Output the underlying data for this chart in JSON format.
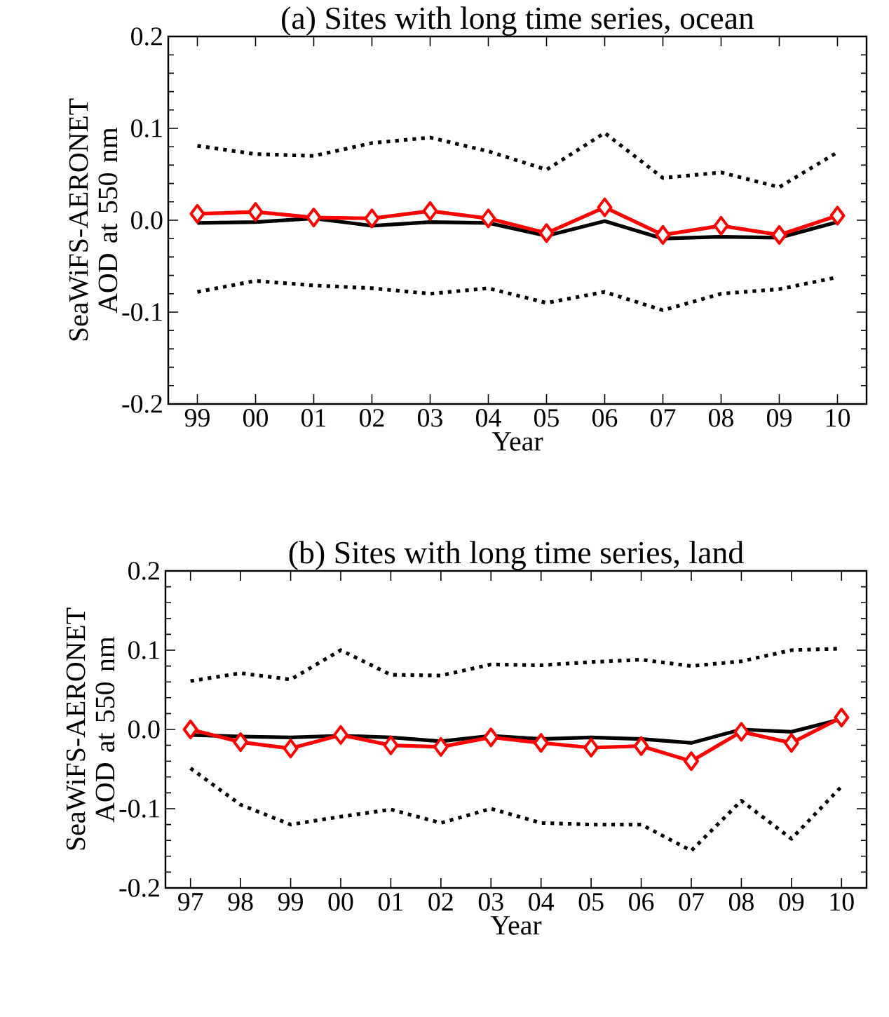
{
  "chart_data": [
    {
      "type": "line",
      "title": "(a) Sites with long time series, ocean",
      "xlabel": "Year",
      "ylabel": "SeaWiFS-AERONET AOD at 550 nm",
      "categories": [
        "99",
        "00",
        "01",
        "02",
        "03",
        "04",
        "05",
        "06",
        "07",
        "08",
        "09",
        "10"
      ],
      "ylim": [
        -0.2,
        0.2
      ],
      "yticks": [
        {
          "value": -0.2,
          "label": "-0.2"
        },
        {
          "value": -0.1,
          "label": "-0.1"
        },
        {
          "value": 0,
          "label": "0.0"
        },
        {
          "value": 0.1,
          "label": "0.1"
        },
        {
          "value": 0.2,
          "label": "0.2"
        }
      ],
      "grid": false,
      "series": [
        {
          "color": "#000000",
          "line_style": "dotted",
          "marker": "none",
          "values": [
            0.081,
            0.072,
            0.07,
            0.084,
            0.09,
            0.075,
            0.055,
            0.095,
            0.046,
            0.052,
            0.036,
            0.074
          ]
        },
        {
          "color": "#000000",
          "line_style": "dotted",
          "marker": "none",
          "values": [
            -0.078,
            -0.066,
            -0.071,
            -0.074,
            -0.08,
            -0.074,
            -0.09,
            -0.078,
            -0.098,
            -0.08,
            -0.075,
            -0.062
          ]
        },
        {
          "color": "#000000",
          "line_style": "solid",
          "marker": "none",
          "values": [
            -0.003,
            -0.002,
            0.002,
            -0.006,
            -0.002,
            -0.003,
            -0.017,
            -0.001,
            -0.02,
            -0.018,
            -0.019,
            -0.002
          ]
        },
        {
          "color": "#ff0000",
          "line_style": "solid",
          "marker": "diamond",
          "values": [
            0.007,
            0.009,
            0.003,
            0.002,
            0.01,
            0.002,
            -0.014,
            0.014,
            -0.016,
            -0.006,
            -0.016,
            0.005
          ]
        }
      ]
    },
    {
      "type": "line",
      "title": "(b) Sites with long time series, land",
      "xlabel": "Year",
      "ylabel": "SeaWiFS-AERONET AOD at 550 nm",
      "categories": [
        "97",
        "98",
        "99",
        "00",
        "01",
        "02",
        "03",
        "04",
        "05",
        "06",
        "07",
        "08",
        "09",
        "10"
      ],
      "ylim": [
        -0.2,
        0.2
      ],
      "yticks": [
        {
          "value": -0.2,
          "label": "-0.2"
        },
        {
          "value": -0.1,
          "label": "-0.1"
        },
        {
          "value": 0,
          "label": "0.0"
        },
        {
          "value": 0.1,
          "label": "0.1"
        },
        {
          "value": 0.2,
          "label": "0.2"
        }
      ],
      "grid": false,
      "series": [
        {
          "color": "#000000",
          "line_style": "dotted",
          "marker": "none",
          "values": [
            0.061,
            0.071,
            0.063,
            0.1,
            0.069,
            0.068,
            0.082,
            0.081,
            0.085,
            0.088,
            0.08,
            0.086,
            0.1,
            0.102
          ]
        },
        {
          "color": "#000000",
          "line_style": "dotted",
          "marker": "none",
          "values": [
            -0.049,
            -0.095,
            -0.12,
            -0.11,
            -0.101,
            -0.118,
            -0.1,
            -0.118,
            -0.12,
            -0.12,
            -0.153,
            -0.09,
            -0.138,
            -0.072
          ]
        },
        {
          "color": "#000000",
          "line_style": "solid",
          "marker": "none",
          "values": [
            -0.007,
            -0.009,
            -0.01,
            -0.008,
            -0.01,
            -0.015,
            -0.008,
            -0.012,
            -0.01,
            -0.012,
            -0.017,
            0.0,
            -0.003,
            0.013
          ]
        },
        {
          "color": "#ff0000",
          "line_style": "solid",
          "marker": "diamond",
          "values": [
            0.0,
            -0.016,
            -0.024,
            -0.007,
            -0.02,
            -0.022,
            -0.01,
            -0.017,
            -0.023,
            -0.021,
            -0.04,
            -0.003,
            -0.017,
            0.015
          ]
        }
      ]
    }
  ]
}
